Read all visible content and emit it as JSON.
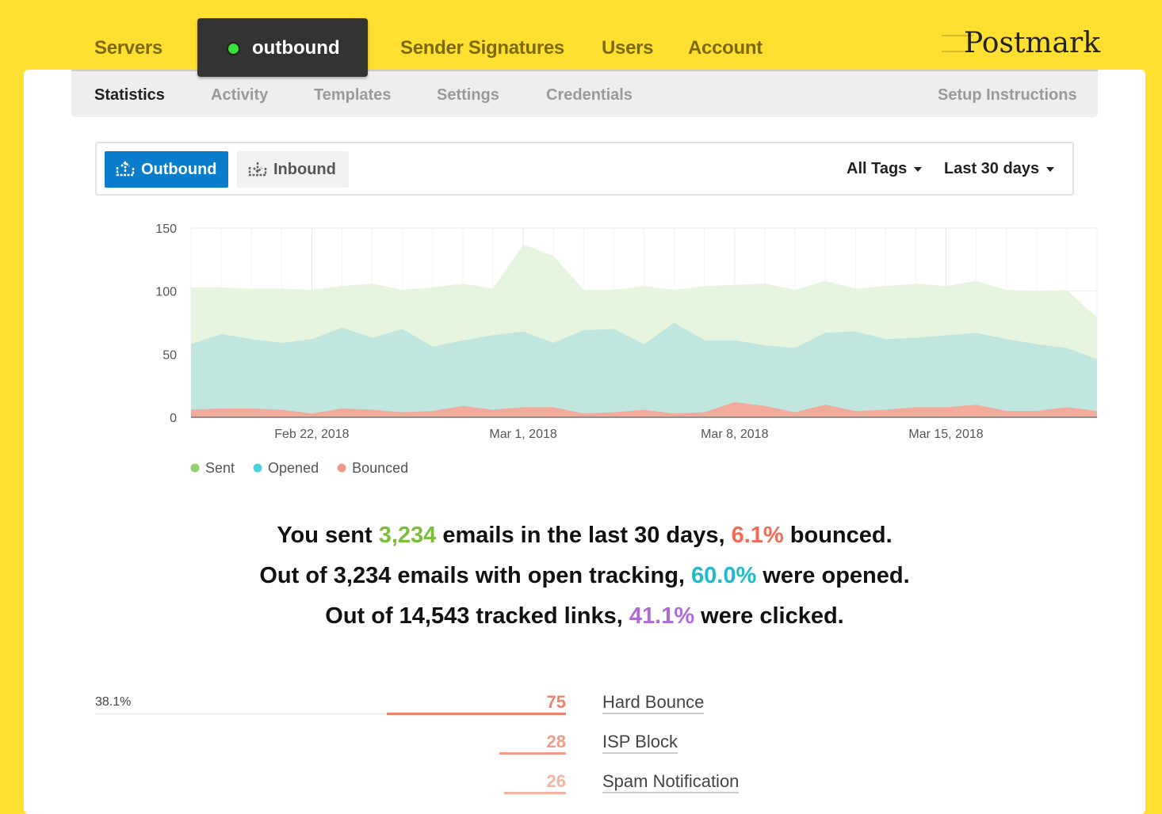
{
  "top_nav": {
    "servers": "Servers",
    "server_name": "outbound",
    "sender_signatures": "Sender Signatures",
    "users": "Users",
    "account": "Account",
    "logo": "Postmark"
  },
  "sub_nav": {
    "statistics": "Statistics",
    "activity": "Activity",
    "templates": "Templates",
    "settings": "Settings",
    "credentials": "Credentials",
    "setup": "Setup Instructions"
  },
  "filters": {
    "outbound": "Outbound",
    "inbound": "Inbound",
    "tags": "All Tags",
    "range": "Last 30 days"
  },
  "chart_data": {
    "type": "area",
    "ylim": [
      0,
      150
    ],
    "yticks": [
      "0",
      "50",
      "100",
      "150"
    ],
    "x": [
      "Feb 18",
      "Feb 19",
      "Feb 20",
      "Feb 21",
      "Feb 22",
      "Feb 23",
      "Feb 24",
      "Feb 25",
      "Feb 26",
      "Feb 27",
      "Feb 28",
      "Mar 1",
      "Mar 2",
      "Mar 3",
      "Mar 4",
      "Mar 5",
      "Mar 6",
      "Mar 7",
      "Mar 8",
      "Mar 9",
      "Mar 10",
      "Mar 11",
      "Mar 12",
      "Mar 13",
      "Mar 14",
      "Mar 15",
      "Mar 16",
      "Mar 17",
      "Mar 18",
      "Mar 19",
      "Mar 20"
    ],
    "xticks": [
      {
        "index": 4,
        "label": "Feb 22, 2018"
      },
      {
        "index": 11,
        "label": "Mar 1, 2018"
      },
      {
        "index": 18,
        "label": "Mar 8, 2018"
      },
      {
        "index": 25,
        "label": "Mar 15, 2018"
      }
    ],
    "series": [
      {
        "name": "Sent",
        "color": "#e5f5de",
        "legend_color": "#8fd16f",
        "values": [
          103,
          103,
          102,
          102,
          101,
          104,
          106,
          101,
          103,
          106,
          102,
          137,
          128,
          101,
          101,
          104,
          101,
          104,
          105,
          106,
          101,
          108,
          102,
          104,
          106,
          104,
          108,
          101,
          100,
          101,
          79
        ]
      },
      {
        "name": "Opened",
        "color": "#c1e6df",
        "legend_color": "#4ecfe0",
        "values": [
          58,
          66,
          62,
          59,
          62,
          71,
          63,
          70,
          56,
          61,
          65,
          68,
          59,
          69,
          70,
          58,
          75,
          61,
          61,
          57,
          55,
          67,
          68,
          62,
          63,
          65,
          67,
          62,
          58,
          55,
          46
        ]
      },
      {
        "name": "Bounced",
        "color": "#f2aa9b",
        "legend_color": "#f29a8a",
        "values": [
          6,
          7,
          7,
          6,
          3,
          7,
          6,
          4,
          5,
          9,
          6,
          8,
          8,
          3,
          4,
          6,
          3,
          4,
          12,
          9,
          4,
          10,
          5,
          6,
          8,
          8,
          10,
          5,
          5,
          8,
          5
        ]
      }
    ]
  },
  "summary": {
    "l1": [
      "You sent ",
      "3,234",
      " emails in the last 30 days, ",
      "6.1%",
      " bounced."
    ],
    "l2": [
      "Out of 3,234 emails with open tracking, ",
      "60.0%",
      " were opened."
    ],
    "l3": [
      "Out of 14,543 tracked links, ",
      "41.1%",
      " were clicked."
    ]
  },
  "bounces": [
    {
      "pct": "38.1%",
      "count": "75",
      "label": "Hard Bounce",
      "share": 0.381,
      "color": "#ec8470"
    },
    {
      "count": "28",
      "label": "ISP Block",
      "share": 0.142,
      "color": "#f09c89"
    },
    {
      "count": "26",
      "label": "Spam Notification",
      "share": 0.132,
      "color": "#f5b49f"
    }
  ]
}
